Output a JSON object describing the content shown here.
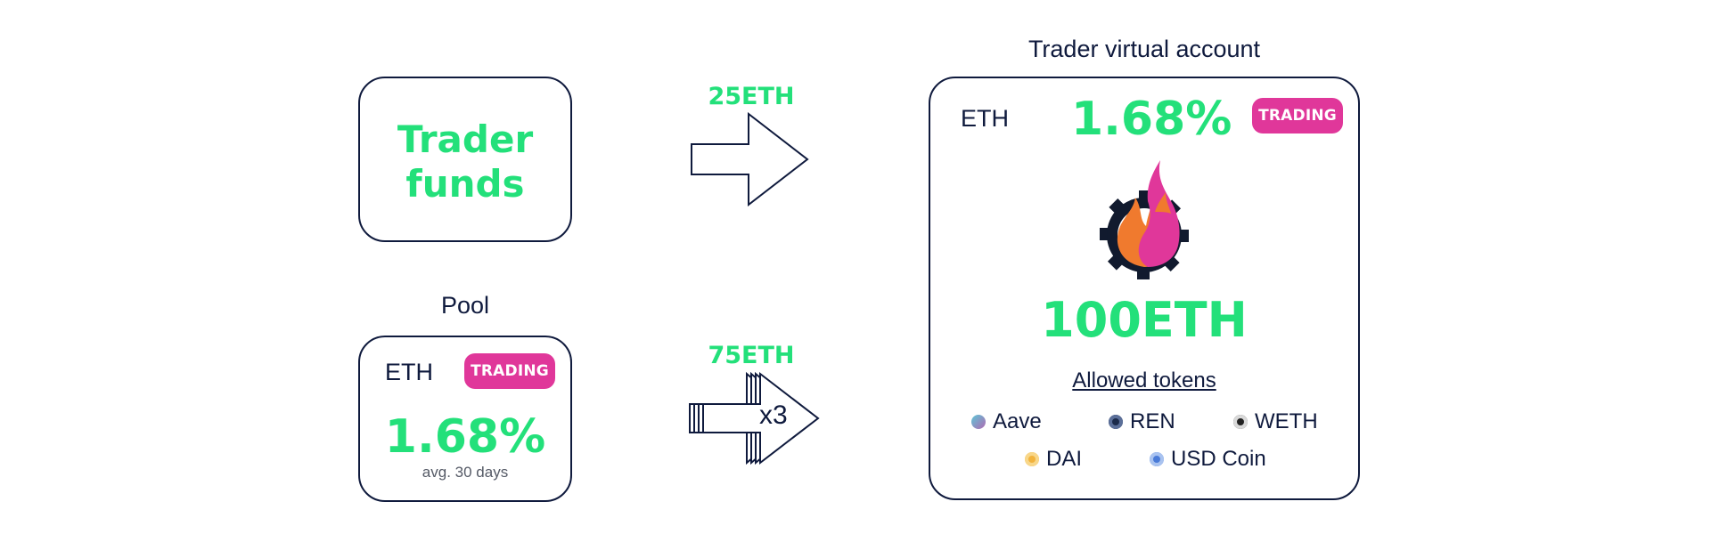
{
  "trader_funds": {
    "title_line1": "Trader",
    "title_line2": "funds"
  },
  "pool": {
    "title": "Pool",
    "asset": "ETH",
    "status": "TRADING",
    "rate": "1.68%",
    "rate_note": "avg. 30 days"
  },
  "arrows": {
    "top": {
      "amount": "25ETH"
    },
    "bottom": {
      "amount": "75ETH",
      "multiplier": "x3"
    }
  },
  "virtual_account": {
    "title": "Trader virtual account",
    "asset": "ETH",
    "rate": "1.68%",
    "status": "TRADING",
    "total": "100ETH",
    "allowed_tokens_label": "Allowed tokens",
    "tokens": [
      {
        "name": "Aave",
        "icon": "aave-icon",
        "color": "#9b7fd6"
      },
      {
        "name": "REN",
        "icon": "ren-icon",
        "color": "#1b2a4a"
      },
      {
        "name": "WETH",
        "icon": "weth-icon",
        "color": "#222222"
      },
      {
        "name": "DAI",
        "icon": "dai-icon",
        "color": "#f2b33d"
      },
      {
        "name": "USD Coin",
        "icon": "usd-coin-icon",
        "color": "#4a7bd8"
      }
    ]
  },
  "colors": {
    "accent_green": "#23e07a",
    "badge_pink": "#e0379a",
    "ink": "#0f1a3d"
  }
}
